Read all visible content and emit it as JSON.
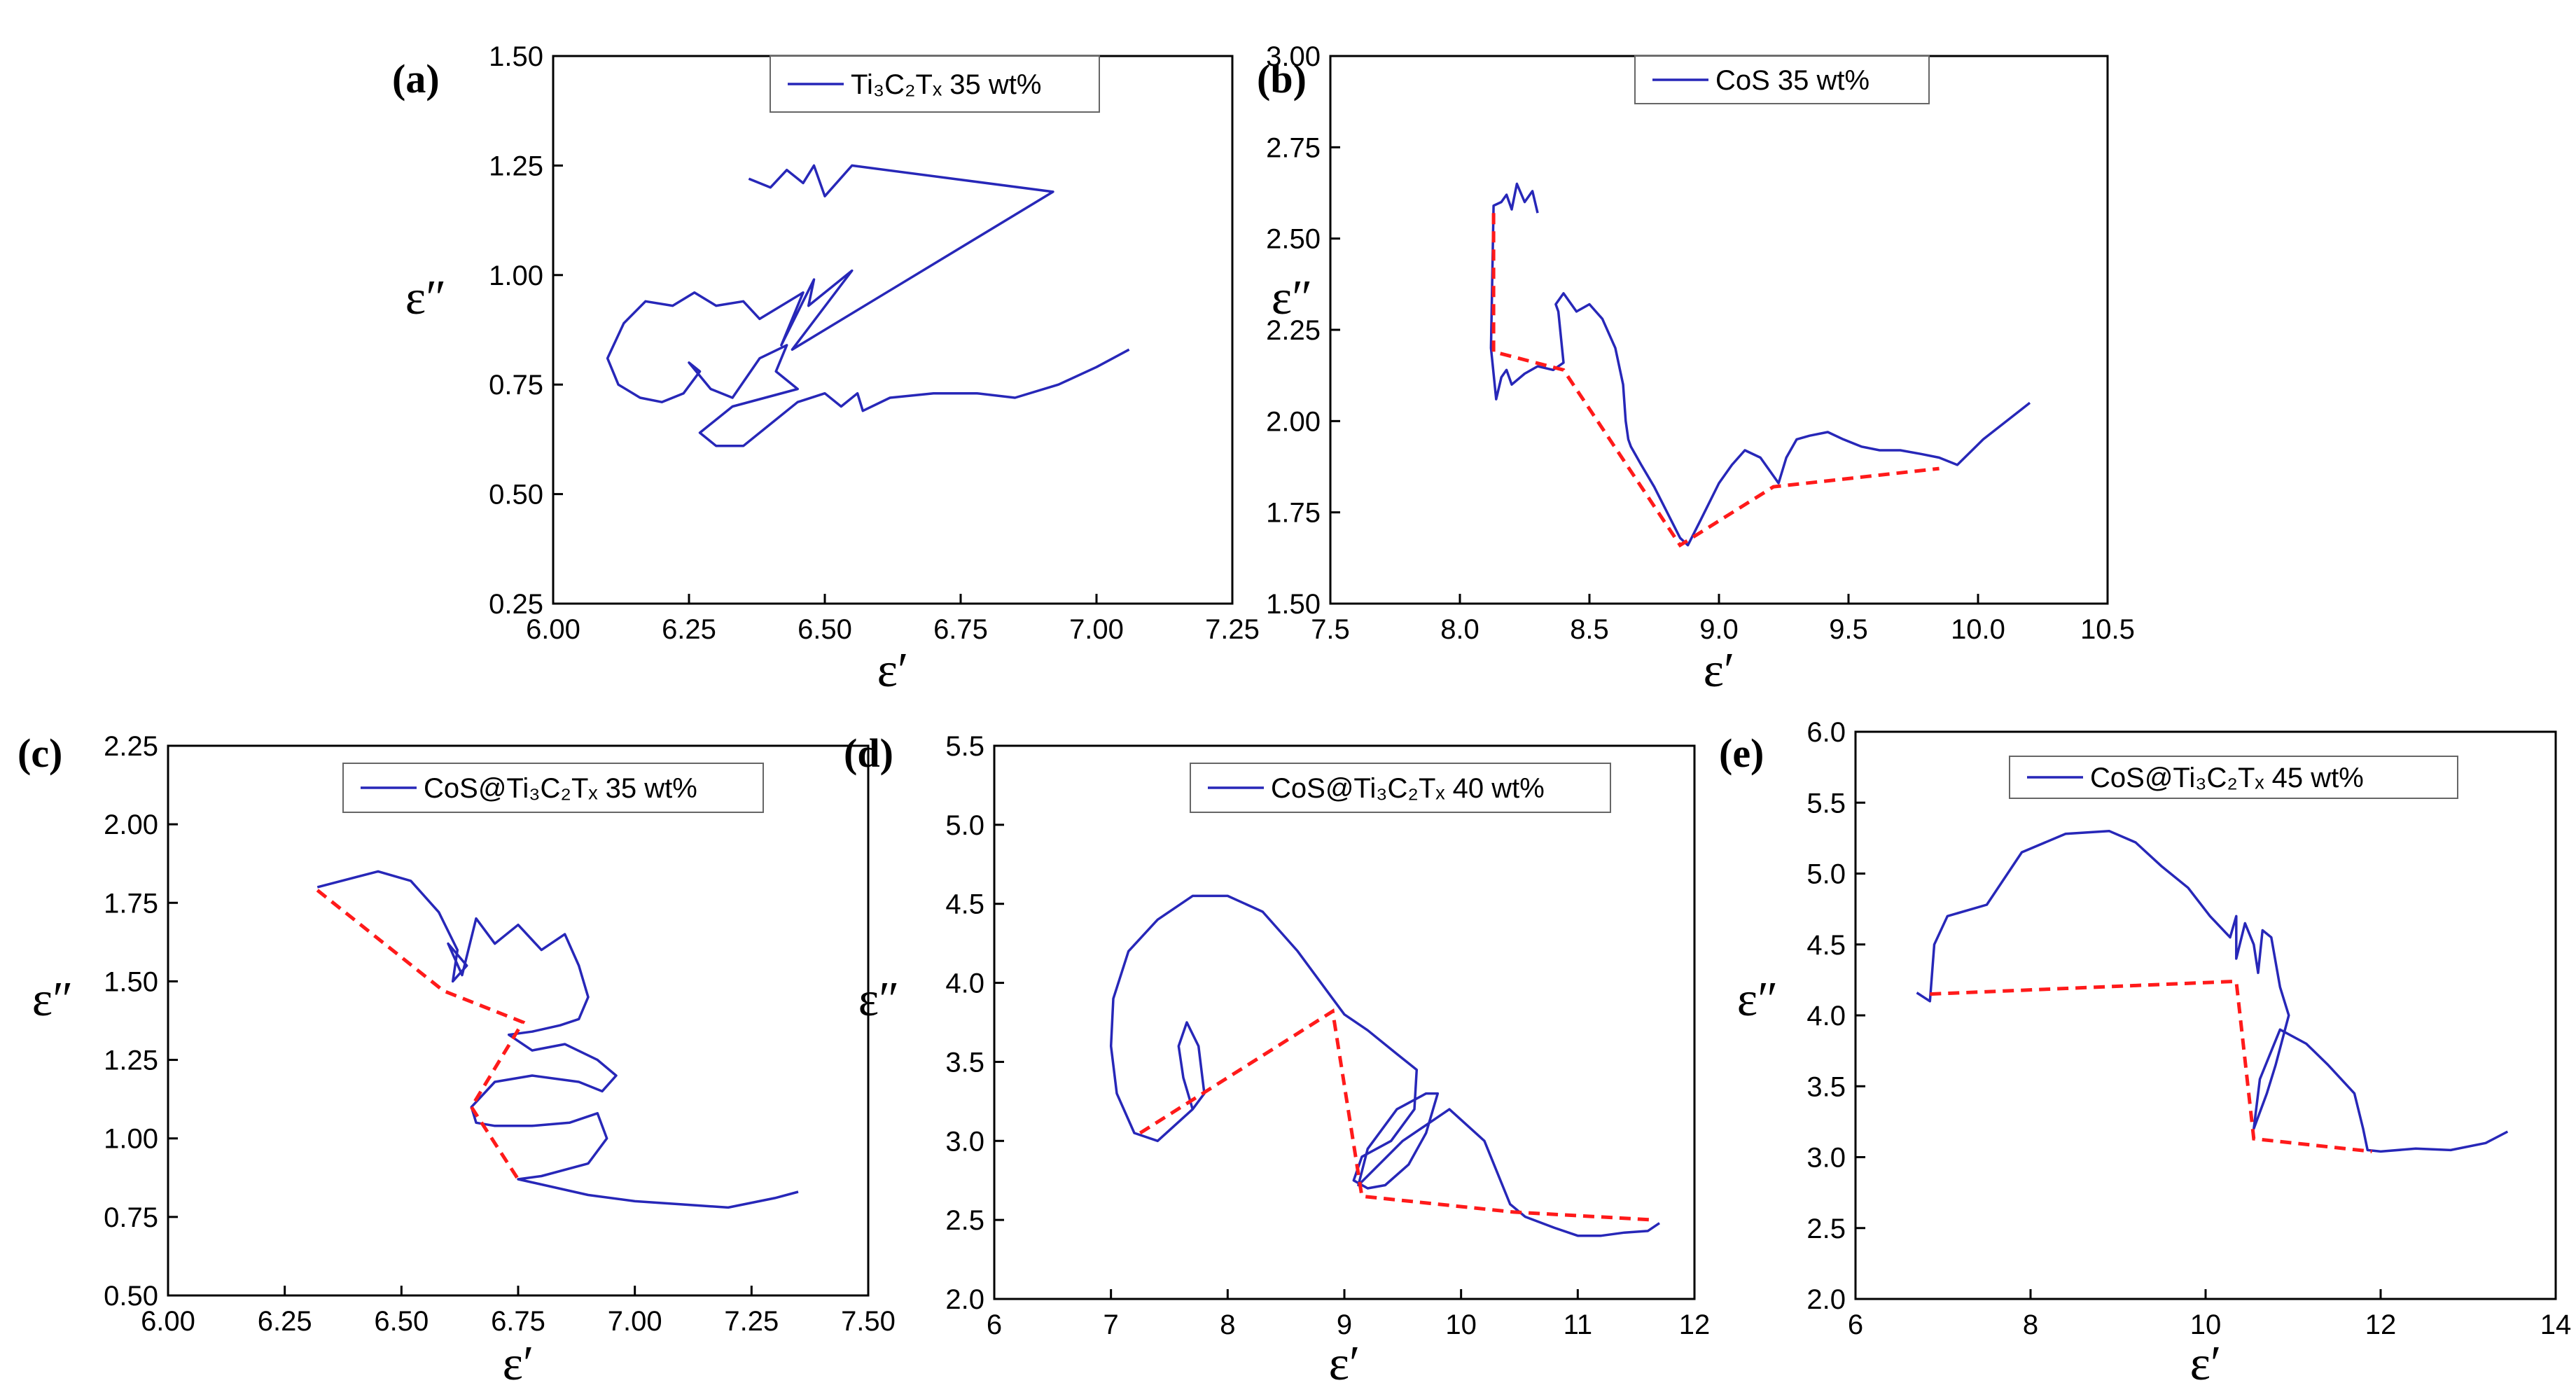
{
  "figure": {
    "colors": {
      "curve": "#2727b8",
      "guide": "#ff1a1a",
      "axis": "#000000"
    },
    "panels": [
      {
        "label": "(a)",
        "legend": "Ti₃C₂Tₓ 35 wt%",
        "xlabel": "ε′",
        "ylabel": "ε″",
        "xticks": [
          "6.00",
          "6.25",
          "6.50",
          "6.75",
          "7.00",
          "7.25"
        ],
        "yticks": [
          "0.25",
          "0.50",
          "0.75",
          "1.00",
          "1.25",
          "1.50"
        ]
      },
      {
        "label": "(b)",
        "legend": "CoS 35 wt%",
        "xlabel": "ε′",
        "ylabel": "ε″",
        "xticks": [
          "7.5",
          "8.0",
          "8.5",
          "9.0",
          "9.5",
          "10.0",
          "10.5"
        ],
        "yticks": [
          "1.50",
          "1.75",
          "2.00",
          "2.25",
          "2.50",
          "2.75",
          "3.00"
        ]
      },
      {
        "label": "(c)",
        "legend": "CoS@Ti₃C₂Tₓ 35 wt%",
        "xlabel": "ε′",
        "ylabel": "ε″",
        "xticks": [
          "6.00",
          "6.25",
          "6.50",
          "6.75",
          "7.00",
          "7.25",
          "7.50"
        ],
        "yticks": [
          "0.50",
          "0.75",
          "1.00",
          "1.25",
          "1.50",
          "1.75",
          "2.00",
          "2.25"
        ]
      },
      {
        "label": "(d)",
        "legend": "CoS@Ti₃C₂Tₓ 40 wt%",
        "xlabel": "ε′",
        "ylabel": "ε″",
        "xticks": [
          "6",
          "7",
          "8",
          "9",
          "10",
          "11",
          "12"
        ],
        "yticks": [
          "2.0",
          "2.5",
          "3.0",
          "3.5",
          "4.0",
          "4.5",
          "5.0",
          "5.5"
        ]
      },
      {
        "label": "(e)",
        "legend": "CoS@Ti₃C₂Tₓ 45 wt%",
        "xlabel": "ε′",
        "ylabel": "ε″",
        "xticks": [
          "6",
          "8",
          "10",
          "12",
          "14"
        ],
        "yticks": [
          "2.0",
          "2.5",
          "3.0",
          "3.5",
          "4.0",
          "4.5",
          "5.0",
          "5.5",
          "6.0"
        ]
      }
    ]
  },
  "chart_data": [
    {
      "type": "line",
      "title": "(a)",
      "xlabel": "ε′",
      "ylabel": "ε″",
      "xlim": [
        6.0,
        7.25
      ],
      "ylim": [
        0.25,
        1.5
      ],
      "series": [
        {
          "name": "Ti₃C₂Tₓ 35 wt%",
          "kind": "curve",
          "x": [
            6.36,
            6.4,
            6.43,
            6.46,
            6.48,
            6.5,
            6.55,
            6.92,
            6.44,
            6.55,
            6.47,
            6.48,
            6.42,
            6.46,
            6.38,
            6.35,
            6.3,
            6.26,
            6.22,
            6.17,
            6.13,
            6.1,
            6.12,
            6.16,
            6.2,
            6.24,
            6.27,
            6.25,
            6.29,
            6.33,
            6.38,
            6.43,
            6.41,
            6.45,
            6.33,
            6.29,
            6.27,
            6.3,
            6.35,
            6.4,
            6.45,
            6.5,
            6.53,
            6.56,
            6.57,
            6.62,
            6.7,
            6.78,
            6.85,
            6.93,
            7.0,
            7.06
          ],
          "y": [
            1.22,
            1.2,
            1.24,
            1.21,
            1.25,
            1.18,
            1.25,
            1.19,
            0.83,
            1.01,
            0.93,
            0.99,
            0.84,
            0.96,
            0.9,
            0.94,
            0.93,
            0.96,
            0.93,
            0.94,
            0.89,
            0.81,
            0.75,
            0.72,
            0.71,
            0.73,
            0.78,
            0.8,
            0.74,
            0.72,
            0.81,
            0.84,
            0.78,
            0.74,
            0.7,
            0.66,
            0.64,
            0.61,
            0.61,
            0.66,
            0.71,
            0.73,
            0.7,
            0.73,
            0.69,
            0.72,
            0.73,
            0.73,
            0.72,
            0.75,
            0.79,
            0.83
          ]
        }
      ]
    },
    {
      "type": "line",
      "title": "(b)",
      "xlabel": "ε′",
      "ylabel": "ε″",
      "xlim": [
        7.5,
        10.5
      ],
      "ylim": [
        1.5,
        3.0
      ],
      "series": [
        {
          "name": "CoS 35 wt%",
          "kind": "curve",
          "x": [
            8.3,
            8.28,
            8.25,
            8.22,
            8.2,
            8.18,
            8.16,
            8.13,
            8.12,
            8.14,
            8.16,
            8.18,
            8.2,
            8.25,
            8.3,
            8.36,
            8.4,
            8.38,
            8.37,
            8.4,
            8.45,
            8.5,
            8.55,
            8.6,
            8.63,
            8.64,
            8.65,
            8.66,
            8.7,
            8.75,
            8.8,
            8.85,
            8.88,
            8.93,
            9.0,
            9.05,
            9.1,
            9.16,
            9.21,
            9.23,
            9.26,
            9.3,
            9.35,
            9.42,
            9.48,
            9.55,
            9.62,
            9.7,
            9.78,
            9.85,
            9.92,
            10.02,
            10.2
          ],
          "y": [
            2.57,
            2.63,
            2.6,
            2.65,
            2.58,
            2.62,
            2.6,
            2.59,
            2.2,
            2.06,
            2.12,
            2.14,
            2.1,
            2.13,
            2.15,
            2.14,
            2.16,
            2.3,
            2.32,
            2.35,
            2.3,
            2.32,
            2.28,
            2.2,
            2.1,
            2.0,
            1.95,
            1.93,
            1.88,
            1.82,
            1.75,
            1.68,
            1.66,
            1.73,
            1.83,
            1.88,
            1.92,
            1.9,
            1.85,
            1.83,
            1.9,
            1.95,
            1.96,
            1.97,
            1.95,
            1.93,
            1.92,
            1.92,
            1.91,
            1.9,
            1.88,
            1.95,
            2.05
          ]
        },
        {
          "name": "guide",
          "kind": "guide",
          "x": [
            8.13,
            8.13,
            8.4,
            8.85,
            9.21,
            9.85
          ],
          "y": [
            2.57,
            2.19,
            2.14,
            1.66,
            1.82,
            1.87
          ]
        }
      ]
    },
    {
      "type": "line",
      "title": "(c)",
      "xlabel": "ε′",
      "ylabel": "ε″",
      "xlim": [
        6.0,
        7.5
      ],
      "ylim": [
        0.5,
        2.25
      ],
      "series": [
        {
          "name": "CoS@Ti₃C₂Tₓ 35 wt%",
          "kind": "curve",
          "x": [
            6.32,
            6.45,
            6.52,
            6.58,
            6.62,
            6.61,
            6.64,
            6.6,
            6.63,
            6.66,
            6.7,
            6.75,
            6.8,
            6.85,
            6.88,
            6.9,
            6.88,
            6.84,
            6.78,
            6.73,
            6.78,
            6.85,
            6.92,
            6.96,
            6.93,
            6.88,
            6.78,
            6.7,
            6.65,
            6.66,
            6.7,
            6.78,
            6.86,
            6.92,
            6.94,
            6.9,
            6.8,
            6.75,
            6.9,
            7.0,
            7.1,
            7.2,
            7.3,
            7.35
          ],
          "y": [
            1.8,
            1.85,
            1.82,
            1.72,
            1.6,
            1.5,
            1.55,
            1.62,
            1.52,
            1.7,
            1.62,
            1.68,
            1.6,
            1.65,
            1.55,
            1.45,
            1.38,
            1.36,
            1.34,
            1.33,
            1.28,
            1.3,
            1.25,
            1.2,
            1.15,
            1.18,
            1.2,
            1.18,
            1.1,
            1.05,
            1.04,
            1.04,
            1.05,
            1.08,
            1.0,
            0.92,
            0.88,
            0.87,
            0.82,
            0.8,
            0.79,
            0.78,
            0.81,
            0.83
          ]
        },
        {
          "name": "guide",
          "kind": "guide",
          "x": [
            6.32,
            6.59,
            6.76,
            6.65,
            6.75
          ],
          "y": [
            1.79,
            1.47,
            1.37,
            1.1,
            0.87
          ]
        }
      ]
    },
    {
      "type": "line",
      "title": "(d)",
      "xlabel": "ε′",
      "ylabel": "ε″",
      "xlim": [
        6,
        12
      ],
      "ylim": [
        2.0,
        5.5
      ],
      "series": [
        {
          "name": "CoS@Ti₃C₂Tₓ 40 wt%",
          "kind": "curve",
          "x": [
            7.7,
            7.62,
            7.58,
            7.65,
            7.75,
            7.8,
            7.7,
            7.4,
            7.2,
            7.05,
            7.0,
            7.02,
            7.15,
            7.4,
            7.7,
            8.0,
            8.3,
            8.6,
            8.85,
            9.0,
            9.2,
            9.45,
            9.62,
            9.6,
            9.4,
            9.15,
            9.08,
            9.2,
            9.35,
            9.55,
            9.7,
            9.8,
            9.7,
            9.45,
            9.2,
            9.12,
            9.5,
            9.9,
            10.2,
            10.42,
            10.55,
            10.8,
            11.0,
            11.2,
            11.4,
            11.6,
            11.7
          ],
          "y": [
            3.2,
            3.4,
            3.6,
            3.75,
            3.6,
            3.3,
            3.2,
            3.0,
            3.05,
            3.3,
            3.6,
            3.9,
            4.2,
            4.4,
            4.55,
            4.55,
            4.45,
            4.2,
            3.95,
            3.8,
            3.7,
            3.55,
            3.45,
            3.2,
            3.0,
            2.9,
            2.75,
            2.7,
            2.72,
            2.85,
            3.05,
            3.3,
            3.3,
            3.2,
            2.95,
            2.72,
            3.0,
            3.2,
            3.0,
            2.6,
            2.52,
            2.45,
            2.4,
            2.4,
            2.42,
            2.43,
            2.48
          ]
        },
        {
          "name": "guide",
          "kind": "guide",
          "x": [
            7.25,
            8.9,
            9.15,
            10.45,
            11.65
          ],
          "y": [
            3.05,
            3.82,
            2.65,
            2.55,
            2.5
          ]
        }
      ]
    },
    {
      "type": "line",
      "title": "(e)",
      "xlabel": "ε′",
      "ylabel": "ε″",
      "xlim": [
        6,
        14
      ],
      "ylim": [
        2.0,
        6.0
      ],
      "series": [
        {
          "name": "CoS@Ti₃C₂Tₓ 45 wt%",
          "kind": "curve",
          "x": [
            6.7,
            6.85,
            6.9,
            7.05,
            7.5,
            7.9,
            8.4,
            8.9,
            9.2,
            9.5,
            9.8,
            10.05,
            10.28,
            10.35,
            10.35,
            10.45,
            10.55,
            10.6,
            10.65,
            10.75,
            10.85,
            10.95,
            10.8,
            10.7,
            10.58,
            10.55,
            10.62,
            10.85,
            11.15,
            11.4,
            11.7,
            11.8,
            11.85,
            12.0,
            12.4,
            12.8,
            13.2,
            13.45
          ],
          "y": [
            4.16,
            4.1,
            4.5,
            4.7,
            4.78,
            5.15,
            5.28,
            5.3,
            5.22,
            5.05,
            4.9,
            4.7,
            4.55,
            4.7,
            4.4,
            4.65,
            4.5,
            4.3,
            4.6,
            4.55,
            4.2,
            4.0,
            3.65,
            3.45,
            3.25,
            3.2,
            3.55,
            3.9,
            3.8,
            3.65,
            3.45,
            3.2,
            3.05,
            3.04,
            3.06,
            3.05,
            3.1,
            3.18
          ]
        },
        {
          "name": "guide",
          "kind": "guide",
          "x": [
            6.85,
            10.35,
            10.55,
            11.9
          ],
          "y": [
            4.15,
            4.24,
            3.13,
            3.04
          ]
        }
      ]
    }
  ]
}
